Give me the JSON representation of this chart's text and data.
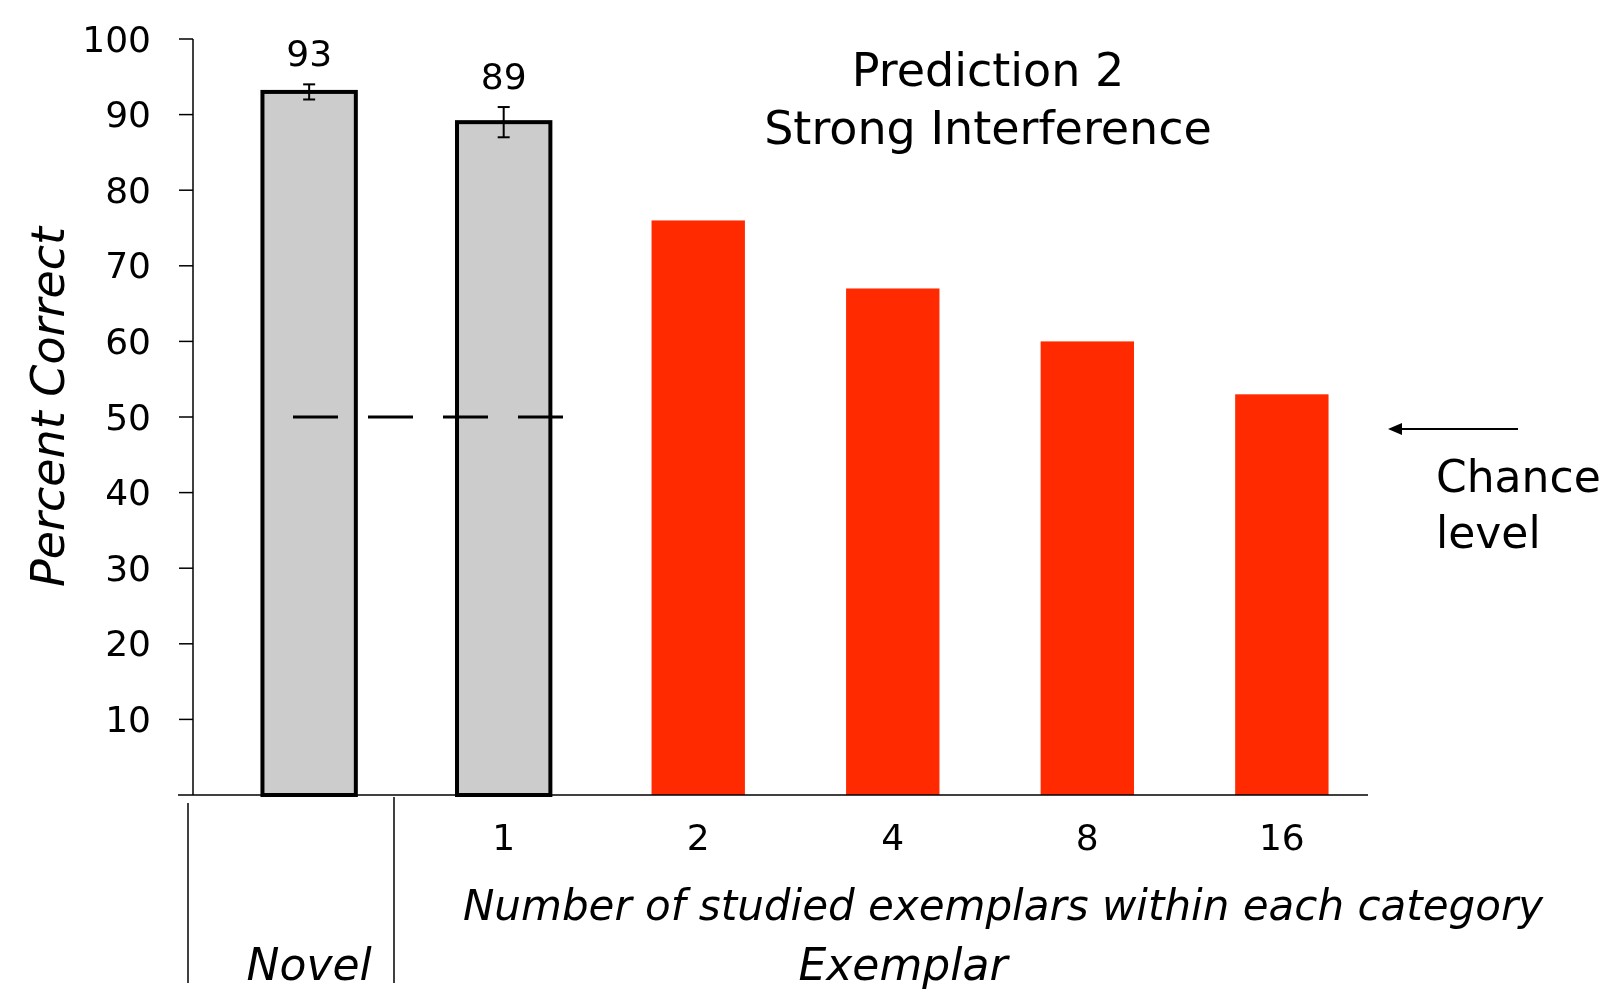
{
  "chart_data": {
    "type": "bar",
    "title": "Prediction 2\nStrong Interference",
    "ylabel": "Percent Correct",
    "xlabel": "Number of studied exemplars within each category",
    "categories": [
      null,
      "1",
      "2",
      "4",
      "8",
      "16"
    ],
    "values": [
      93,
      89,
      76,
      67,
      60,
      53
    ],
    "colors": [
      "#cccccc",
      "#cccccc",
      "#ff2a00",
      "#ff2a00",
      "#ff2a00",
      "#ff2a00"
    ],
    "errors": [
      1,
      2,
      null,
      null,
      null,
      null
    ],
    "value_labels": [
      "93",
      "89",
      null,
      null,
      null,
      null
    ],
    "ylim": [
      0,
      100
    ],
    "yticks": [
      10,
      20,
      30,
      40,
      50,
      60,
      70,
      80,
      90,
      100
    ],
    "ref_lines": [
      {
        "axis": "y",
        "value": 50,
        "label": "Chance level",
        "line_style": "dashed",
        "color": "#000000"
      }
    ],
    "annotations": [
      "Novel",
      "Exemplar"
    ]
  }
}
